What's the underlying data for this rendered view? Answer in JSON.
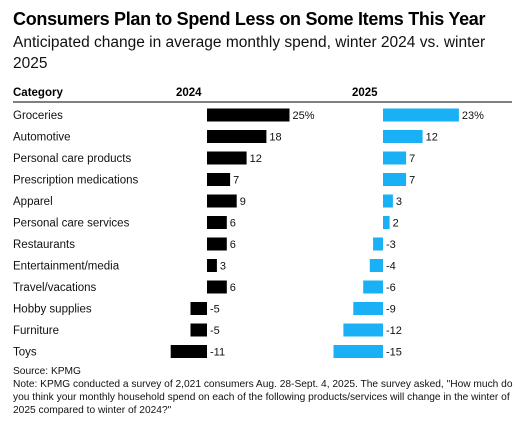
{
  "chart": {
    "title": "Consumers Plan to Spend Less on Some Items This Year",
    "subtitle": "Anticipated change in average monthly spend, winter 2024 vs. winter 2025",
    "category_header": "Category",
    "source": "Source: KPMG",
    "note": "Note: KPMG conducted a survey of 2,021 consumers Aug. 28-Sept. 4, 2025. The survey asked, \"How much do you think your monthly household spend on each of the following products/services will change in the winter of 2025 compared to winter of 2024?\""
  },
  "chart_data": {
    "type": "bar",
    "orientation": "horizontal",
    "categories": [
      "Groceries",
      "Automotive",
      "Personal care products",
      "Prescription medications",
      "Apparel",
      "Personal care services",
      "Restaurants",
      "Entertainment/media",
      "Travel/vacations",
      "Hobby supplies",
      "Furniture",
      "Toys"
    ],
    "series": [
      {
        "name": "2024",
        "color": "#000000",
        "values": [
          25,
          18,
          12,
          7,
          9,
          6,
          6,
          3,
          6,
          -5,
          -5,
          -11
        ],
        "labels": [
          "25%",
          "18",
          "12",
          "7",
          "9",
          "6",
          "6",
          "3",
          "6",
          "-5",
          "-5",
          "-11"
        ]
      },
      {
        "name": "2025",
        "color": "#1ab0f5",
        "values": [
          23,
          12,
          7,
          7,
          3,
          2,
          -3,
          -4,
          -6,
          -9,
          -12,
          -15
        ],
        "labels": [
          "23%",
          "12",
          "7",
          "7",
          "3",
          "2",
          "-3",
          "-4",
          "-6",
          "-9",
          "-12",
          "-15"
        ]
      }
    ],
    "unit": "%"
  }
}
